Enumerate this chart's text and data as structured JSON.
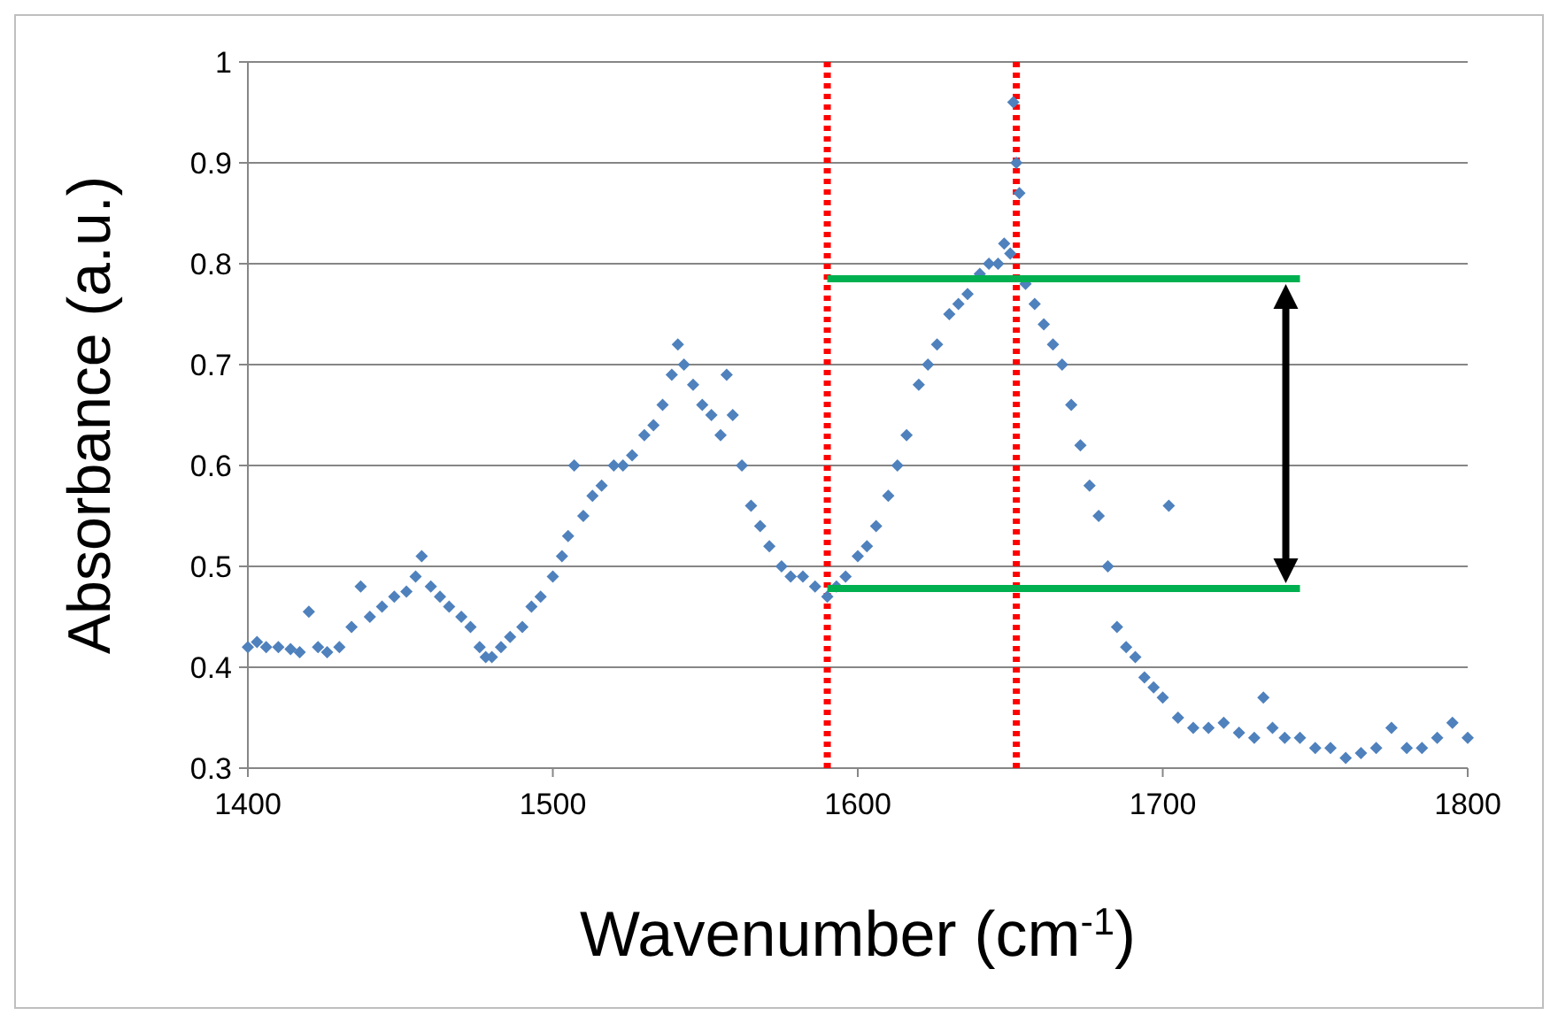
{
  "chart_data": {
    "type": "scatter",
    "xlabel": "Wavenumber (cm$^{-1}$)",
    "ylabel": "Absorbance (a.u.)",
    "xlim": [
      1400,
      1800
    ],
    "xticks": [
      1400,
      1500,
      1600,
      1700,
      1800
    ],
    "ylim": [
      0.3,
      1
    ],
    "yticks": [
      0.3,
      0.4,
      0.5,
      0.6,
      0.7,
      0.8,
      0.9,
      1
    ],
    "grid": "y",
    "marker": "diamond",
    "series": [
      {
        "color": "#4f81bd",
        "x": [
          1400,
          1403,
          1406,
          1410,
          1414,
          1417,
          1420,
          1423,
          1426,
          1430,
          1434,
          1437,
          1440,
          1444,
          1448,
          1452,
          1455,
          1457,
          1460,
          1463,
          1466,
          1470,
          1473,
          1476,
          1478,
          1480,
          1483,
          1486,
          1490,
          1493,
          1496,
          1500,
          1503,
          1505,
          1507,
          1510,
          1513,
          1516,
          1520,
          1523,
          1526,
          1530,
          1533,
          1536,
          1539,
          1541,
          1543,
          1546,
          1549,
          1552,
          1555,
          1557,
          1559,
          1562,
          1565,
          1568,
          1571,
          1575,
          1578,
          1582,
          1586,
          1590,
          1593,
          1596,
          1600,
          1603,
          1606,
          1610,
          1613,
          1616,
          1620,
          1623,
          1626,
          1630,
          1633,
          1636,
          1640,
          1643,
          1646,
          1648,
          1650,
          1651,
          1652,
          1653,
          1655,
          1658,
          1661,
          1664,
          1667,
          1670,
          1673,
          1676,
          1679,
          1682,
          1685,
          1688,
          1691,
          1694,
          1697,
          1700,
          1702,
          1705,
          1710,
          1715,
          1720,
          1725,
          1730,
          1733,
          1736,
          1740,
          1745,
          1750,
          1755,
          1760,
          1765,
          1770,
          1775,
          1780,
          1785,
          1790,
          1795,
          1800
        ],
        "values": [
          0.42,
          0.425,
          0.42,
          0.42,
          0.418,
          0.415,
          0.455,
          0.42,
          0.415,
          0.42,
          0.44,
          0.48,
          0.45,
          0.46,
          0.47,
          0.475,
          0.49,
          0.51,
          0.48,
          0.47,
          0.46,
          0.45,
          0.44,
          0.42,
          0.41,
          0.41,
          0.42,
          0.43,
          0.44,
          0.46,
          0.47,
          0.49,
          0.51,
          0.53,
          0.6,
          0.55,
          0.57,
          0.58,
          0.6,
          0.6,
          0.61,
          0.63,
          0.64,
          0.66,
          0.69,
          0.72,
          0.7,
          0.68,
          0.66,
          0.65,
          0.63,
          0.69,
          0.65,
          0.6,
          0.56,
          0.54,
          0.52,
          0.5,
          0.49,
          0.49,
          0.48,
          0.47,
          0.48,
          0.49,
          0.51,
          0.52,
          0.54,
          0.57,
          0.6,
          0.63,
          0.68,
          0.7,
          0.72,
          0.75,
          0.76,
          0.77,
          0.79,
          0.8,
          0.8,
          0.82,
          0.81,
          0.96,
          0.9,
          0.87,
          0.78,
          0.76,
          0.74,
          0.72,
          0.7,
          0.66,
          0.62,
          0.58,
          0.55,
          0.5,
          0.44,
          0.42,
          0.41,
          0.39,
          0.38,
          0.37,
          0.56,
          0.35,
          0.34,
          0.34,
          0.345,
          0.335,
          0.33,
          0.37,
          0.34,
          0.33,
          0.33,
          0.32,
          0.32,
          0.31,
          0.315,
          0.32,
          0.34,
          0.32,
          0.32,
          0.33,
          0.345,
          0.33
        ]
      },
      {
        "type": "line",
        "marker": "none",
        "color": "#00b050",
        "x": [
          1590,
          1745
        ],
        "values": [
          0.785,
          0.785
        ]
      },
      {
        "type": "line",
        "marker": "none",
        "color": "#00b050",
        "x": [
          1590,
          1745
        ],
        "values": [
          0.478,
          0.478
        ]
      }
    ],
    "ref_lines": [
      {
        "axis": "x",
        "value": 1590,
        "color": "#ff0000",
        "line_style": "dotted"
      },
      {
        "axis": "x",
        "value": 1652,
        "color": "#ff0000",
        "line_style": "dotted"
      }
    ]
  }
}
